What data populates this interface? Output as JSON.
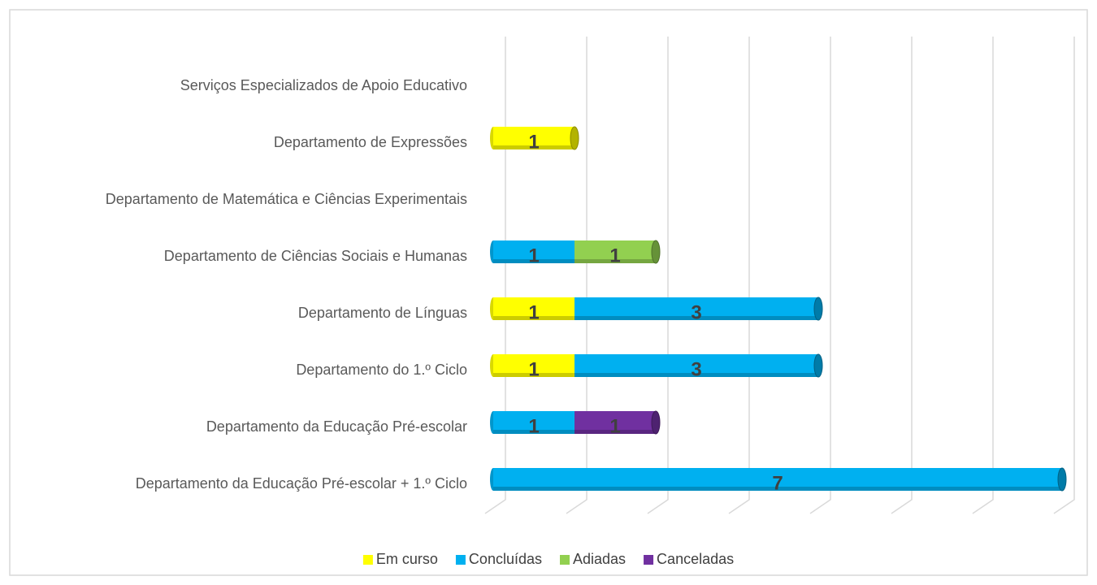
{
  "chart_data": {
    "type": "bar",
    "orientation": "horizontal",
    "stacked": true,
    "categories": [
      "Serviços Especializados de Apoio Educativo",
      "Departamento de Expressões",
      "Departamento de Matemática e Ciências Experimentais",
      "Departamento de Ciências Sociais e Humanas",
      "Departamento de Línguas",
      "Departamento do 1.º Ciclo",
      "Departamento da Educação Pré-escolar",
      "Departamento da Educação Pré-escolar + 1.º Ciclo"
    ],
    "series": [
      {
        "name": "Em curso",
        "color": "#ffff00",
        "values": [
          null,
          1,
          null,
          null,
          1,
          1,
          null,
          null
        ]
      },
      {
        "name": "Concluídas",
        "color": "#00b0f0",
        "values": [
          null,
          null,
          null,
          1,
          3,
          3,
          1,
          7
        ]
      },
      {
        "name": "Adiadas",
        "color": "#92d050",
        "values": [
          null,
          null,
          null,
          1,
          null,
          null,
          null,
          null
        ]
      },
      {
        "name": "Canceladas",
        "color": "#7030a0",
        "values": [
          null,
          null,
          null,
          null,
          null,
          null,
          1,
          null
        ]
      }
    ],
    "xlim": [
      0,
      7
    ],
    "xticks": [
      0,
      1,
      2,
      3,
      4,
      5,
      6,
      7
    ],
    "grid": true,
    "legend": "bottom"
  }
}
